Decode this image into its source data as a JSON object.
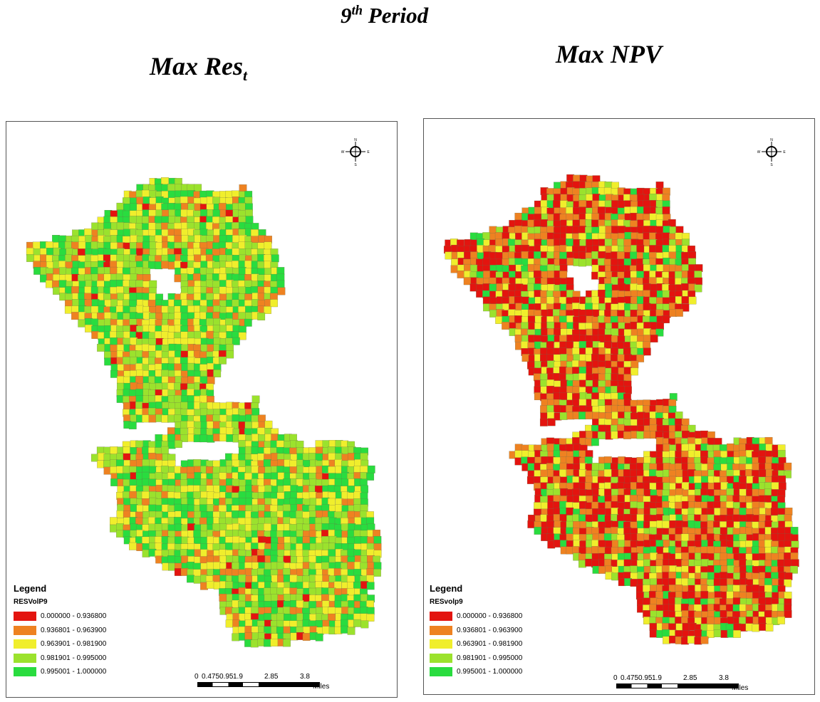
{
  "figure": {
    "period_title": {
      "prefix": "9",
      "sup": "th",
      "suffix": " Period"
    },
    "colors": [
      "#e3140f",
      "#ee8221",
      "#f0ee2c",
      "#9be22d",
      "#29dc3f"
    ],
    "panels": [
      {
        "heading": {
          "main": "Max Res",
          "sub": "t"
        },
        "legend": {
          "title": "Legend",
          "field": "RESVolP9",
          "classes": [
            {
              "label": "0.000000 - 0.936800",
              "color": "#e3140f"
            },
            {
              "label": "0.936801 - 0.963900",
              "color": "#ee8221"
            },
            {
              "label": "0.963901 - 0.981900",
              "color": "#f0ee2c"
            },
            {
              "label": "0.981901 - 0.995000",
              "color": "#9be22d"
            },
            {
              "label": "0.995001 - 1.000000",
              "color": "#29dc3f"
            }
          ]
        },
        "scale": {
          "ticks": [
            "0",
            "0.4750.95",
            "1.9",
            "2.85",
            "3.8"
          ],
          "unit": "Miles"
        },
        "north_arrow": {
          "labels": [
            "N",
            "W",
            "E",
            "S"
          ]
        },
        "class_weights": [
          0.03,
          0.15,
          0.27,
          0.3,
          0.25
        ]
      },
      {
        "heading": {
          "main": "Max NPV",
          "sub": ""
        },
        "legend": {
          "title": "Legend",
          "field": "RESvolp9",
          "classes": [
            {
              "label": "0.000000 - 0.936800",
              "color": "#e3140f"
            },
            {
              "label": "0.936801 - 0.963900",
              "color": "#ee8221"
            },
            {
              "label": "0.963901 - 0.981900",
              "color": "#f0ee2c"
            },
            {
              "label": "0.981901 - 0.995000",
              "color": "#9be22d"
            },
            {
              "label": "0.995001 - 1.000000",
              "color": "#29dc3f"
            }
          ]
        },
        "scale": {
          "ticks": [
            "0",
            "0.4750.95",
            "1.9",
            "2.85",
            "3.8"
          ],
          "unit": "Miles"
        },
        "north_arrow": {
          "labels": [
            "N",
            "W",
            "E",
            "S"
          ]
        },
        "class_weights": [
          0.4,
          0.25,
          0.15,
          0.12,
          0.08
        ]
      }
    ]
  }
}
